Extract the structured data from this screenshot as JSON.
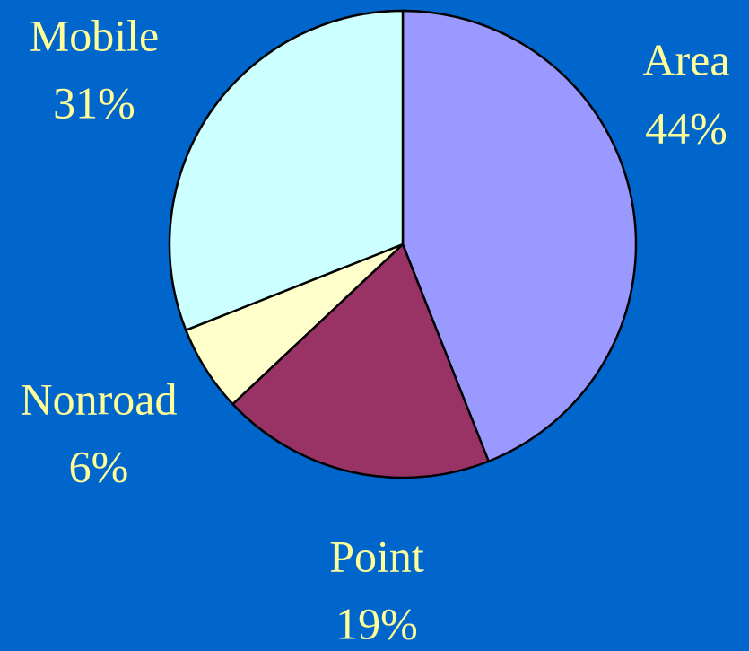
{
  "chart_data": {
    "type": "pie",
    "categories": [
      "Area",
      "Point",
      "Nonroad",
      "Mobile"
    ],
    "values": [
      44,
      19,
      6,
      31
    ],
    "value_labels": [
      "44%",
      "19%",
      "6%",
      "31%"
    ],
    "colors": [
      "#9999ff",
      "#993366",
      "#ffffcc",
      "#ccffff"
    ]
  }
}
